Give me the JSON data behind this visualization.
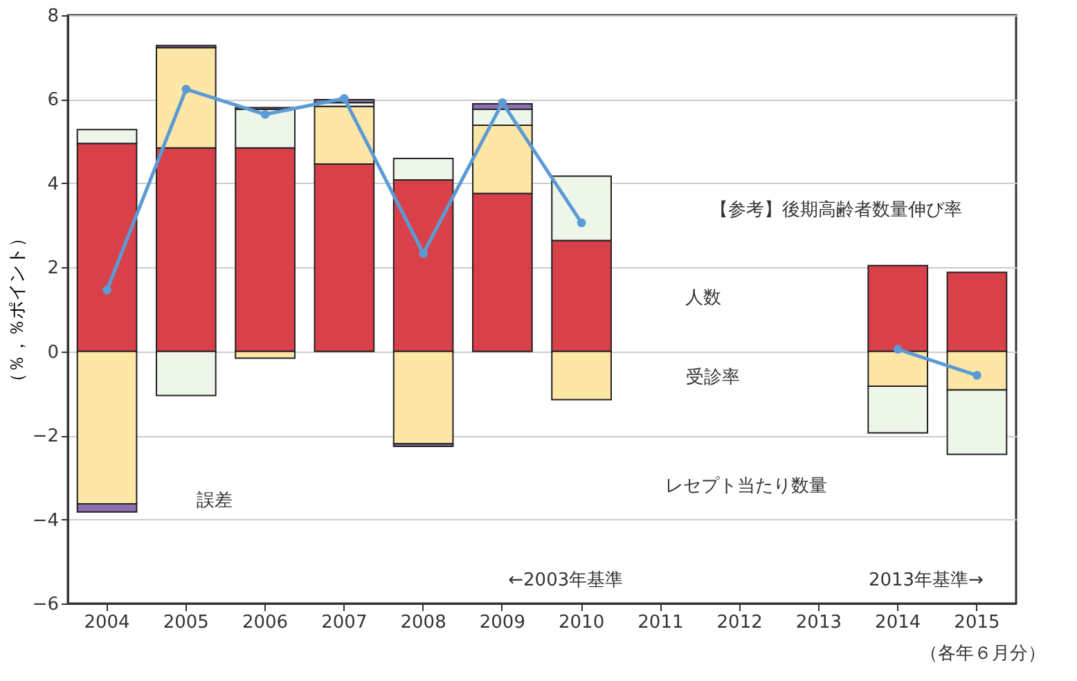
{
  "chart_data": {
    "type": "bar",
    "stacked": true,
    "ylabel": "（％，％ポイント）",
    "categories": [
      "2004",
      "2005",
      "2006",
      "2007",
      "2008",
      "2009",
      "2010",
      "2011",
      "2012",
      "2013",
      "2014",
      "2015"
    ],
    "series": [
      {
        "color": "#d9414a",
        "values": [
          4.95,
          4.84,
          4.84,
          4.46,
          4.08,
          3.76,
          2.64,
          null,
          null,
          null,
          2.04,
          1.88
        ]
      },
      {
        "color": "#fde6a6",
        "values": [
          -3.63,
          2.39,
          -0.16,
          1.37,
          -2.2,
          1.62,
          -1.15,
          null,
          null,
          null,
          -0.83,
          -0.92
        ]
      },
      {
        "color": "#eef5e9",
        "values": [
          0.33,
          -1.05,
          0.92,
          0.09,
          0.51,
          0.38,
          1.53,
          null,
          null,
          null,
          -1.11,
          -1.53
        ]
      },
      {
        "color": "#8e6fb0",
        "values": [
          -0.19,
          0.05,
          0.04,
          0.07,
          -0.06,
          0.13,
          null,
          null,
          null,
          null,
          null,
          null
        ]
      },
      {
        "type": "line",
        "color": "#5b9bd5",
        "values": [
          1.46,
          6.24,
          5.64,
          6.02,
          2.33,
          5.92,
          3.06,
          null,
          null,
          null,
          0.05,
          -0.57
        ]
      }
    ],
    "marker": "circle",
    "line_style": "solid",
    "ylim": [
      -6,
      8
    ],
    "yticks": [
      -6,
      -4,
      -2,
      0,
      2,
      4,
      6,
      8
    ],
    "grid": "y",
    "annotations": [
      "人数",
      "受診率",
      "誤差",
      "レセプト当たり数量",
      "【参考】後期高齢者数量伸び率",
      "←2003年基準",
      "2013年基準→",
      "（各年６月分）"
    ]
  }
}
